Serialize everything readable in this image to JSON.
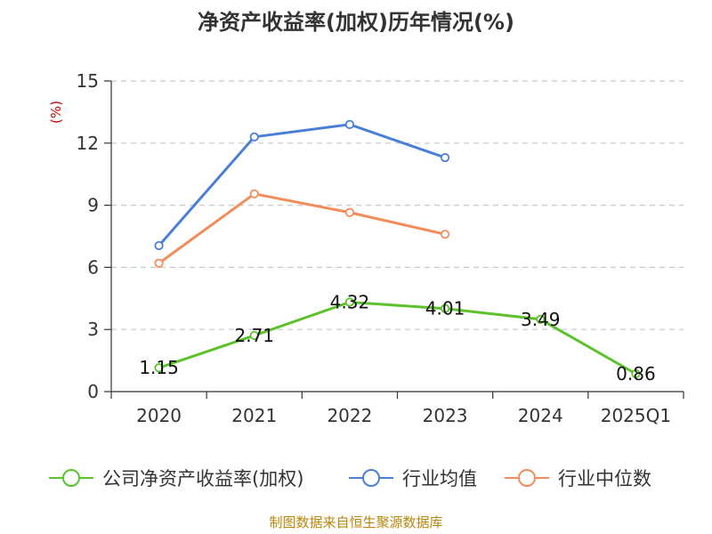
{
  "chart_data": {
    "type": "line",
    "title": "净资产收益率(加权)历年情况(%)",
    "ylabel": "(%)",
    "xlabel": "",
    "categories": [
      "2020",
      "2021",
      "2022",
      "2023",
      "2024",
      "2025Q1"
    ],
    "ylim": [
      0,
      15
    ],
    "yticks": [
      0,
      3,
      6,
      9,
      12,
      15
    ],
    "grid": true,
    "legend_position": "bottom",
    "series": [
      {
        "name": "公司净资产收益率(加权)",
        "color": "#5cc22a",
        "values": [
          1.15,
          2.71,
          4.32,
          4.01,
          3.49,
          0.86
        ],
        "labels": [
          "1.15",
          "2.71",
          "4.32",
          "4.01",
          "3.49",
          "0.86"
        ],
        "show_labels": true
      },
      {
        "name": "行业均值",
        "color": "#4a7fd8",
        "values": [
          7.05,
          12.3,
          12.9,
          11.3,
          null,
          null
        ],
        "show_labels": false
      },
      {
        "name": "行业中位数",
        "color": "#f48c5a",
        "values": [
          6.2,
          9.55,
          8.65,
          7.6,
          null,
          null
        ],
        "show_labels": false
      }
    ]
  },
  "source": "制图数据来自恒生聚源数据库"
}
